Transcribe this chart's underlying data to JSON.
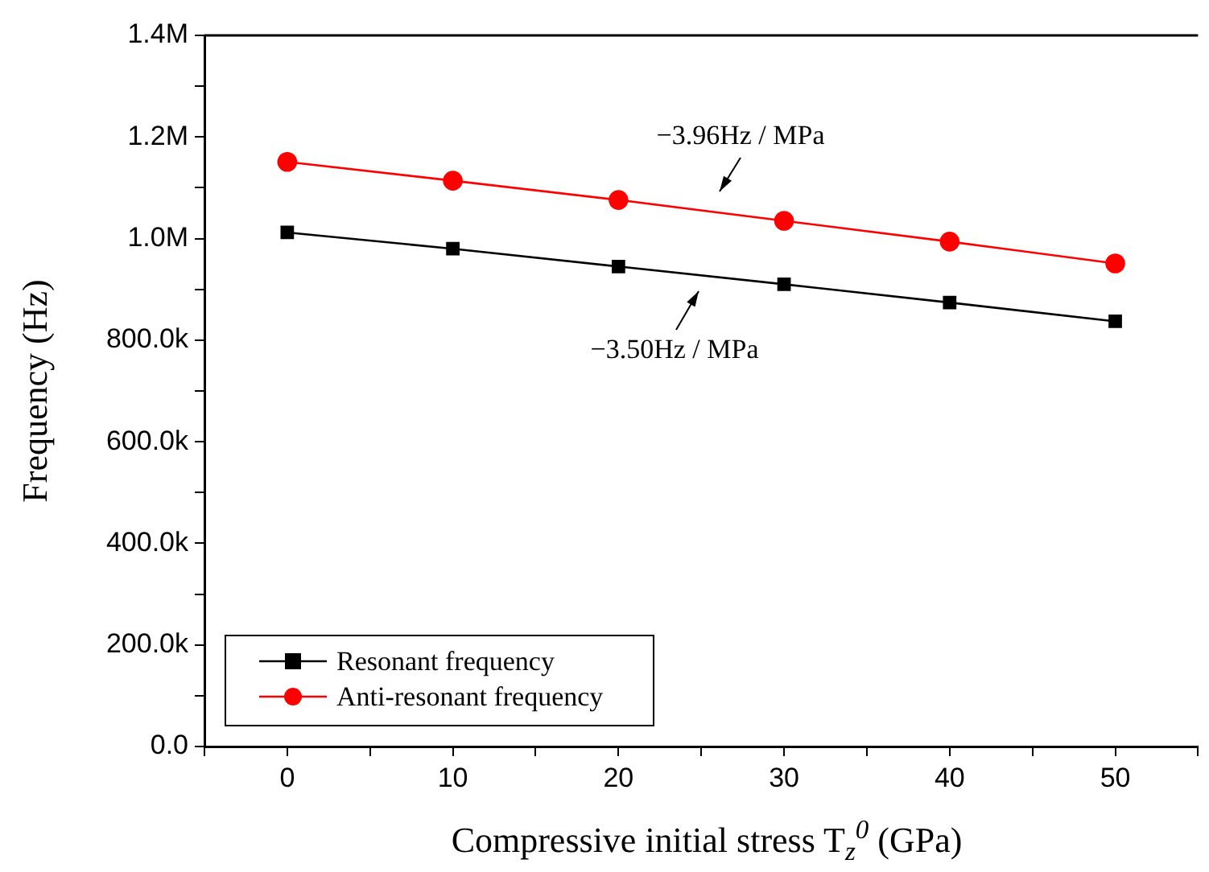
{
  "chart_data": {
    "type": "line",
    "xlabel": "Compressive initial stress T$_{z}$$^{0}$ (GPa)",
    "ylabel": "Frequency (Hz)",
    "x": [
      0,
      10,
      20,
      30,
      40,
      50
    ],
    "series": [
      {
        "name": "Resonant frequency",
        "color": "#000000",
        "marker": "square",
        "values": [
          1012000,
          980000,
          945000,
          910000,
          874000,
          837000
        ]
      },
      {
        "name": "Anti-resonant frequency",
        "color": "#ff0000",
        "marker": "circle",
        "values": [
          1151000,
          1114000,
          1076000,
          1035000,
          994000,
          951000
        ]
      }
    ],
    "xlim": [
      -5,
      55
    ],
    "xticks": [
      {
        "value": -5,
        "label": null
      },
      0,
      {
        "value": 5,
        "label": null
      },
      10,
      {
        "value": 15,
        "label": null
      },
      20,
      {
        "value": 25,
        "label": null
      },
      30,
      {
        "value": 35,
        "label": null
      },
      40,
      {
        "value": 45,
        "label": null
      },
      50,
      {
        "value": 55,
        "label": null
      }
    ],
    "ylim": [
      0,
      1400000
    ],
    "yticks": [
      {
        "value": 0,
        "label": "0.0"
      },
      {
        "value": 100000,
        "label": null
      },
      {
        "value": 200000,
        "label": "200.0k"
      },
      {
        "value": 300000,
        "label": null
      },
      {
        "value": 400000,
        "label": "400.0k"
      },
      {
        "value": 500000,
        "label": null
      },
      {
        "value": 600000,
        "label": "600.0k"
      },
      {
        "value": 700000,
        "label": null
      },
      {
        "value": 800000,
        "label": "800.0k"
      },
      {
        "value": 900000,
        "label": null
      },
      {
        "value": 1000000,
        "label": "1.0M"
      },
      {
        "value": 1100000,
        "label": null
      },
      {
        "value": 1200000,
        "label": "1.2M"
      },
      {
        "value": 1300000,
        "label": null
      },
      {
        "value": 1400000,
        "label": "1.4M"
      }
    ],
    "annotations": [
      "−3.96Hz / MPa",
      "−3.50Hz / MPa"
    ],
    "grid": false,
    "legend": "bottom left",
    "line_style": "solid"
  }
}
